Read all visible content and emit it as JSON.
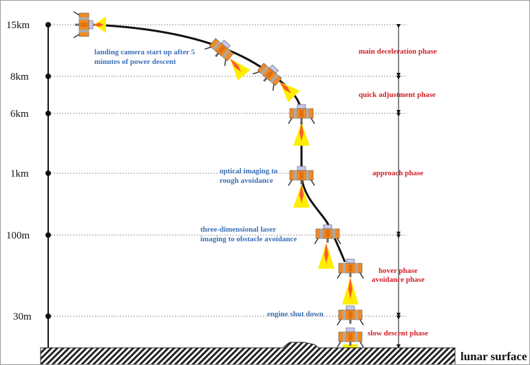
{
  "altitudes": [
    "15km",
    "8km",
    "6km",
    "1km",
    "100m",
    "30m"
  ],
  "phases": {
    "main": "main deceleration phase",
    "quick": "quick adjustment phase",
    "approach": "approach phase",
    "hover": "hover phase",
    "avoidance": "avoidance phase",
    "slow": "slow descent phase"
  },
  "notes": {
    "camera_1": "landing camera start up after 5",
    "camera_2": "minutes of power descent",
    "optical_1": "optical imaging to",
    "optical_2": "rough avoidance",
    "laser_1": "three-dimensional laser",
    "laser_2": "imaging to obstacle avoidance",
    "shutdown": "engine shut down"
  },
  "surface_label": "lunar surface",
  "colors": {
    "phase_text": "#d0202a",
    "note_text": "#3b6fb6",
    "lander_body": "#f08a24",
    "plume": "#ffee00",
    "flame": "#ff5a2a"
  }
}
